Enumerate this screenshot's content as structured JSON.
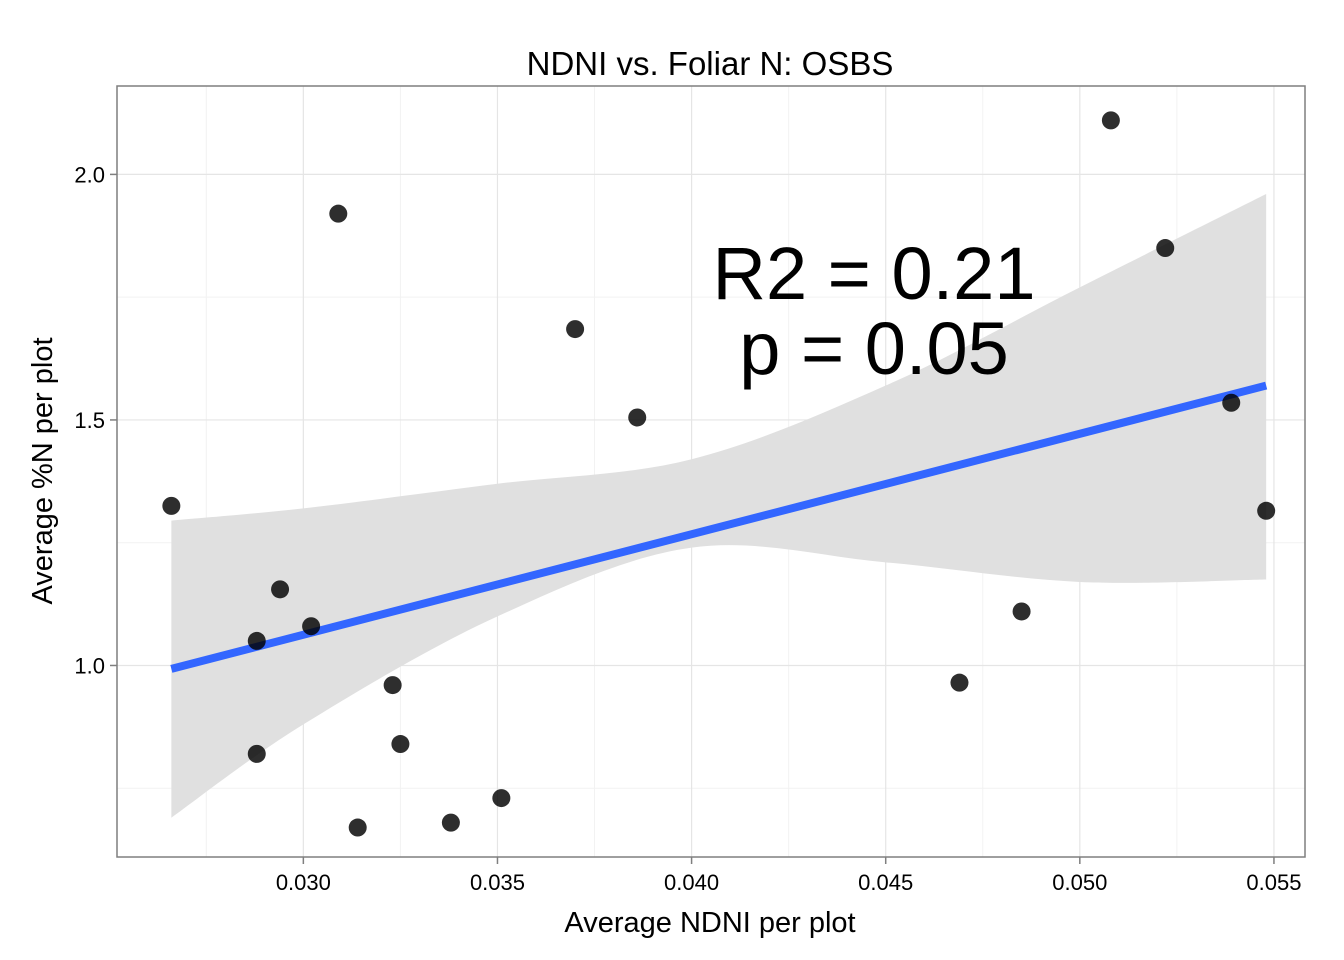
{
  "chart_data": {
    "type": "scatter",
    "title": "NDNI vs. Foliar N: OSBS",
    "xlabel": "Average NDNI per plot",
    "ylabel": "Average %N per plot",
    "xlim": [
      0.0252,
      0.0558
    ],
    "ylim": [
      0.61,
      2.18
    ],
    "x_ticks": [
      0.03,
      0.035,
      0.04,
      0.045,
      0.05,
      0.055
    ],
    "x_tick_labels": [
      "0.030",
      "0.035",
      "0.040",
      "0.045",
      "0.050",
      "0.055"
    ],
    "y_ticks": [
      1.0,
      1.5,
      2.0
    ],
    "y_tick_labels": [
      "1.0",
      "1.5",
      "2.0"
    ],
    "grid": true,
    "points": [
      {
        "x": 0.0266,
        "y": 1.325
      },
      {
        "x": 0.0288,
        "y": 1.05
      },
      {
        "x": 0.0288,
        "y": 0.82
      },
      {
        "x": 0.0294,
        "y": 1.155
      },
      {
        "x": 0.0302,
        "y": 1.08
      },
      {
        "x": 0.0309,
        "y": 1.92
      },
      {
        "x": 0.0314,
        "y": 0.67
      },
      {
        "x": 0.0323,
        "y": 0.96
      },
      {
        "x": 0.0325,
        "y": 0.84
      },
      {
        "x": 0.0338,
        "y": 0.68
      },
      {
        "x": 0.0351,
        "y": 0.73
      },
      {
        "x": 0.037,
        "y": 1.685
      },
      {
        "x": 0.0386,
        "y": 1.505
      },
      {
        "x": 0.0469,
        "y": 0.965
      },
      {
        "x": 0.0485,
        "y": 1.11
      },
      {
        "x": 0.0508,
        "y": 2.11
      },
      {
        "x": 0.0522,
        "y": 1.85
      },
      {
        "x": 0.0539,
        "y": 1.535
      },
      {
        "x": 0.0548,
        "y": 1.315
      }
    ],
    "fit_line": {
      "x": [
        0.0266,
        0.0548
      ],
      "y": [
        0.993,
        1.57
      ],
      "color": "#3366FF"
    },
    "confidence_band": {
      "x": [
        0.0266,
        0.03,
        0.035,
        0.04,
        0.045,
        0.05,
        0.0548
      ],
      "lower": [
        0.69,
        0.88,
        1.1,
        1.24,
        1.21,
        1.17,
        1.175
      ],
      "upper": [
        1.295,
        1.32,
        1.37,
        1.42,
        1.57,
        1.77,
        1.96
      ],
      "color": "#E0E0E0"
    },
    "annotations": [
      "R2 = 0.21",
      "p = 0.05"
    ]
  }
}
